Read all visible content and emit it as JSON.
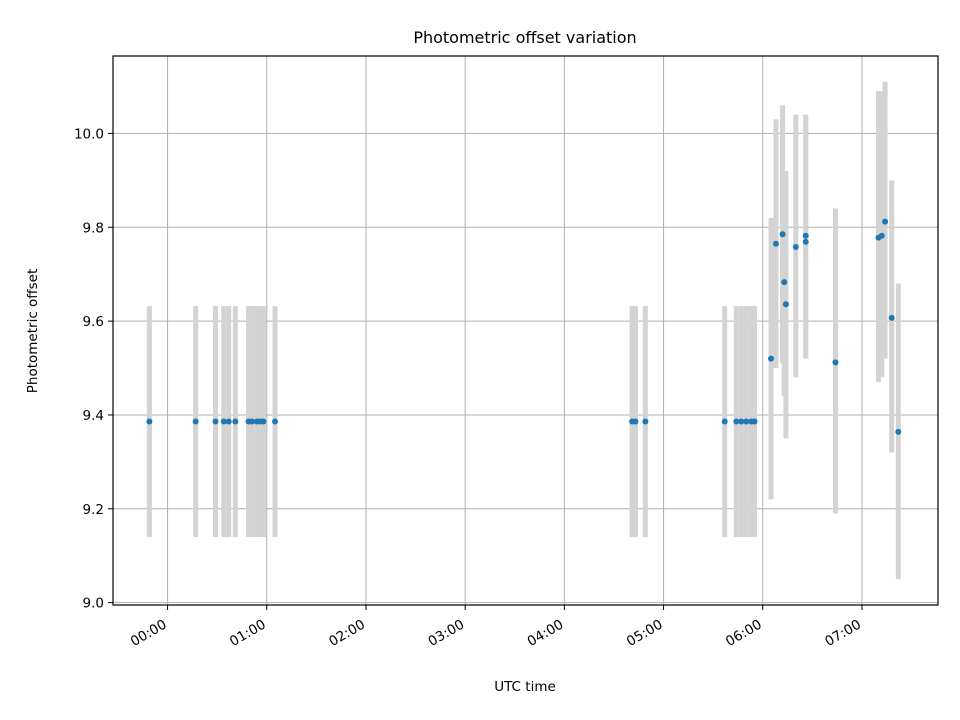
{
  "chart_data": {
    "type": "scatter",
    "title": "Photometric offset variation",
    "xlabel": "UTC time",
    "ylabel": "Photometric offset",
    "x_unit": "UTC time (HH:MM)",
    "xlim": [
      "-00:33",
      "07:46"
    ],
    "ylim": [
      8.995,
      10.165
    ],
    "x_ticks": [
      "00:00",
      "01:00",
      "02:00",
      "03:00",
      "04:00",
      "05:00",
      "06:00",
      "07:00"
    ],
    "y_ticks": [
      "9.0",
      "9.2",
      "9.4",
      "9.6",
      "9.8",
      "10.0"
    ],
    "grid": true,
    "marker_color": "#1f77b4",
    "errorbar_color": "#d3d3d3",
    "series": [
      {
        "points": [
          {
            "x": "-00:11",
            "y": 9.386,
            "ylo": 9.14,
            "yhi": 9.632
          },
          {
            "x": "00:17",
            "y": 9.386,
            "ylo": 9.14,
            "yhi": 9.632
          },
          {
            "x": "00:29",
            "y": 9.386,
            "ylo": 9.14,
            "yhi": 9.632
          },
          {
            "x": "00:34",
            "y": 9.386,
            "ylo": 9.14,
            "yhi": 9.632
          },
          {
            "x": "00:37",
            "y": 9.386,
            "ylo": 9.14,
            "yhi": 9.632
          },
          {
            "x": "00:41",
            "y": 9.386,
            "ylo": 9.14,
            "yhi": 9.632
          },
          {
            "x": "00:49",
            "y": 9.386,
            "ylo": 9.14,
            "yhi": 9.632
          },
          {
            "x": "00:51",
            "y": 9.386,
            "ylo": 9.14,
            "yhi": 9.632
          },
          {
            "x": "00:54",
            "y": 9.386,
            "ylo": 9.14,
            "yhi": 9.632
          },
          {
            "x": "00:56",
            "y": 9.386,
            "ylo": 9.14,
            "yhi": 9.632
          },
          {
            "x": "00:58",
            "y": 9.386,
            "ylo": 9.14,
            "yhi": 9.632
          },
          {
            "x": "01:05",
            "y": 9.386,
            "ylo": 9.14,
            "yhi": 9.632
          },
          {
            "x": "04:41",
            "y": 9.386,
            "ylo": 9.14,
            "yhi": 9.632
          },
          {
            "x": "04:43",
            "y": 9.386,
            "ylo": 9.14,
            "yhi": 9.632
          },
          {
            "x": "04:49",
            "y": 9.386,
            "ylo": 9.14,
            "yhi": 9.632
          },
          {
            "x": "05:37",
            "y": 9.386,
            "ylo": 9.14,
            "yhi": 9.632
          },
          {
            "x": "05:44",
            "y": 9.386,
            "ylo": 9.14,
            "yhi": 9.632
          },
          {
            "x": "05:47",
            "y": 9.386,
            "ylo": 9.14,
            "yhi": 9.632
          },
          {
            "x": "05:50",
            "y": 9.386,
            "ylo": 9.14,
            "yhi": 9.632
          },
          {
            "x": "05:53",
            "y": 9.386,
            "ylo": 9.14,
            "yhi": 9.632
          },
          {
            "x": "05:55",
            "y": 9.386,
            "ylo": 9.14,
            "yhi": 9.632
          },
          {
            "x": "06:05",
            "y": 9.52,
            "ylo": 9.22,
            "yhi": 9.82
          },
          {
            "x": "06:08",
            "y": 9.765,
            "ylo": 9.5,
            "yhi": 10.03
          },
          {
            "x": "06:12",
            "y": 9.785,
            "ylo": 9.51,
            "yhi": 10.06
          },
          {
            "x": "06:13",
            "y": 9.683,
            "ylo": 9.44,
            "yhi": 9.92
          },
          {
            "x": "06:14",
            "y": 9.636,
            "ylo": 9.35,
            "yhi": 9.92
          },
          {
            "x": "06:20",
            "y": 9.758,
            "ylo": 9.48,
            "yhi": 10.04
          },
          {
            "x": "06:26",
            "y": 9.769,
            "ylo": 9.52,
            "yhi": 10.04
          },
          {
            "x": "06:26",
            "y": 9.782,
            "ylo": 9.52,
            "yhi": 10.04
          },
          {
            "x": "06:44",
            "y": 9.512,
            "ylo": 9.19,
            "yhi": 9.84
          },
          {
            "x": "07:10",
            "y": 9.778,
            "ylo": 9.47,
            "yhi": 10.09
          },
          {
            "x": "07:12",
            "y": 9.782,
            "ylo": 9.48,
            "yhi": 10.09
          },
          {
            "x": "07:14",
            "y": 9.812,
            "ylo": 9.52,
            "yhi": 10.11
          },
          {
            "x": "07:18",
            "y": 9.607,
            "ylo": 9.32,
            "yhi": 9.9
          },
          {
            "x": "07:22",
            "y": 9.364,
            "ylo": 9.05,
            "yhi": 9.68
          }
        ]
      }
    ]
  }
}
